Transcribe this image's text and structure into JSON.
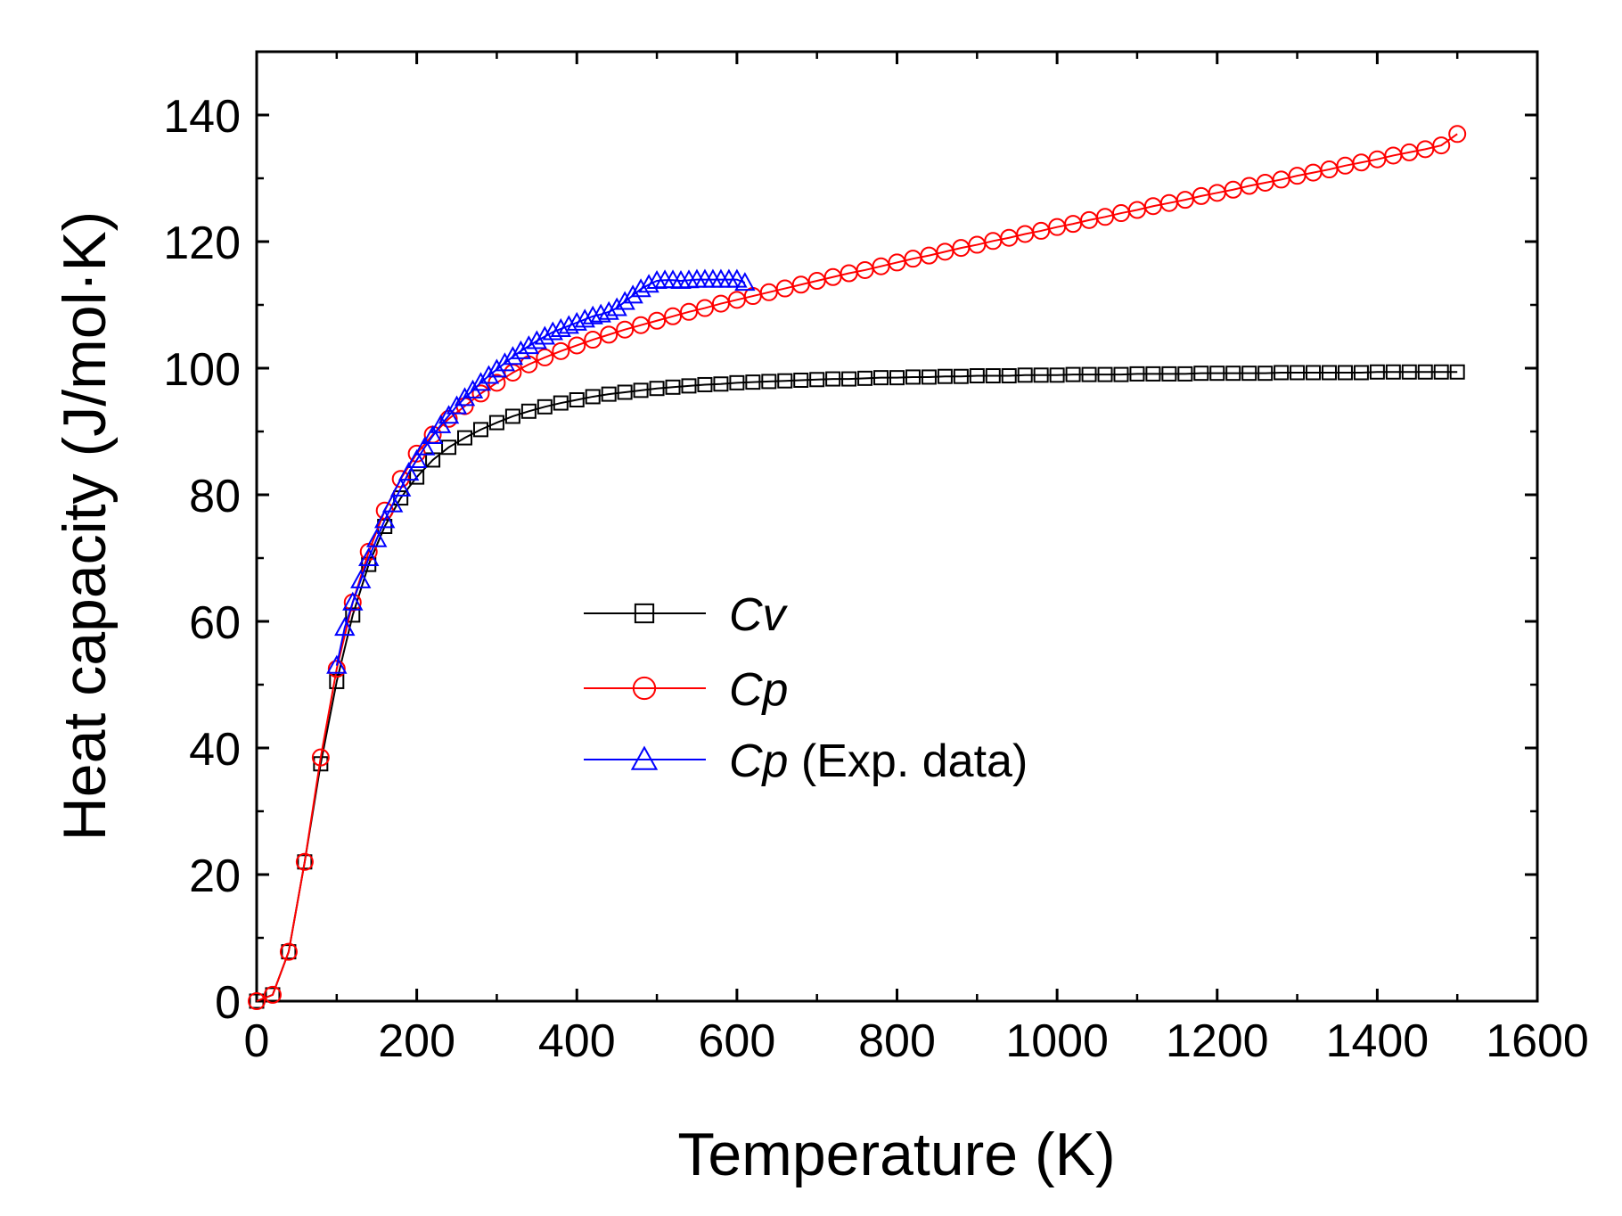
{
  "chart_data": {
    "type": "line",
    "xlabel": "Temperature (K)",
    "ylabel": "Heat capacity (J/mol·K)",
    "xlim": [
      0,
      1600
    ],
    "ylim": [
      0,
      150
    ],
    "x_ticks": [
      0,
      200,
      400,
      600,
      800,
      1000,
      1200,
      1400,
      1600
    ],
    "y_ticks": [
      0,
      20,
      40,
      60,
      80,
      100,
      120,
      140
    ],
    "legend_position": "center",
    "series": [
      {
        "name": "Cv",
        "name_main": "Cv",
        "name_suffix": "",
        "color": "#000000",
        "marker": "square",
        "x": [
          0,
          20,
          40,
          60,
          80,
          100,
          120,
          140,
          160,
          180,
          200,
          220,
          240,
          260,
          280,
          300,
          320,
          340,
          360,
          380,
          400,
          420,
          440,
          460,
          480,
          500,
          520,
          540,
          560,
          580,
          600,
          620,
          640,
          660,
          680,
          700,
          720,
          740,
          760,
          780,
          800,
          820,
          840,
          860,
          880,
          900,
          920,
          940,
          960,
          980,
          1000,
          1020,
          1040,
          1060,
          1080,
          1100,
          1120,
          1140,
          1160,
          1180,
          1200,
          1220,
          1240,
          1260,
          1280,
          1300,
          1320,
          1340,
          1360,
          1380,
          1400,
          1420,
          1440,
          1460,
          1480,
          1500
        ],
        "values": [
          0,
          1,
          7.8,
          22,
          37.5,
          50.5,
          61,
          69,
          75,
          79.5,
          82.8,
          85.5,
          87.5,
          89,
          90.3,
          91.4,
          92.4,
          93.2,
          93.9,
          94.5,
          95,
          95.5,
          95.9,
          96.2,
          96.5,
          96.8,
          97,
          97.2,
          97.4,
          97.5,
          97.7,
          97.8,
          97.9,
          98,
          98.1,
          98.2,
          98.3,
          98.3,
          98.4,
          98.5,
          98.5,
          98.6,
          98.6,
          98.7,
          98.7,
          98.8,
          98.8,
          98.8,
          98.9,
          98.9,
          98.9,
          99,
          99,
          99,
          99,
          99.1,
          99.1,
          99.1,
          99.1,
          99.2,
          99.2,
          99.2,
          99.2,
          99.2,
          99.3,
          99.3,
          99.3,
          99.3,
          99.3,
          99.3,
          99.4,
          99.4,
          99.4,
          99.4,
          99.4,
          99.4
        ]
      },
      {
        "name": "Cp",
        "name_main": "Cp",
        "name_suffix": "",
        "color": "#ff0000",
        "marker": "circle",
        "x": [
          0,
          20,
          40,
          60,
          80,
          100,
          120,
          140,
          160,
          180,
          200,
          220,
          240,
          260,
          280,
          300,
          320,
          340,
          360,
          380,
          400,
          420,
          440,
          460,
          480,
          500,
          520,
          540,
          560,
          580,
          600,
          620,
          640,
          660,
          680,
          700,
          720,
          740,
          760,
          780,
          800,
          820,
          840,
          860,
          880,
          900,
          920,
          940,
          960,
          980,
          1000,
          1020,
          1040,
          1060,
          1080,
          1100,
          1120,
          1140,
          1160,
          1180,
          1200,
          1220,
          1240,
          1260,
          1280,
          1300,
          1320,
          1340,
          1360,
          1380,
          1400,
          1420,
          1440,
          1460,
          1480,
          1500
        ],
        "values": [
          0,
          1,
          7.8,
          22,
          38.5,
          52.5,
          63,
          71,
          77.5,
          82.5,
          86.5,
          89.5,
          92,
          94,
          96,
          97.7,
          99.3,
          100.6,
          101.7,
          102.7,
          103.6,
          104.5,
          105.3,
          106.1,
          106.8,
          107.5,
          108.2,
          108.9,
          109.5,
          110.2,
          110.8,
          111.4,
          112,
          112.6,
          113.2,
          113.8,
          114.4,
          115,
          115.5,
          116.1,
          116.7,
          117.3,
          117.8,
          118.4,
          119,
          119.5,
          120.1,
          120.6,
          121.2,
          121.7,
          122.3,
          122.8,
          123.4,
          123.9,
          124.5,
          125,
          125.6,
          126.1,
          126.6,
          127.2,
          127.7,
          128.2,
          128.8,
          129.3,
          129.8,
          130.4,
          130.9,
          131.4,
          132,
          132.5,
          133,
          133.6,
          134.1,
          134.6,
          135.2,
          137
        ]
      },
      {
        "name": "Cp (Exp. data)",
        "name_main": "Cp",
        "name_suffix": " (Exp. data)",
        "color": "#0000ff",
        "marker": "triangle",
        "x": [
          100,
          110,
          120,
          130,
          140,
          150,
          160,
          170,
          180,
          190,
          200,
          210,
          220,
          230,
          240,
          250,
          260,
          270,
          280,
          290,
          300,
          310,
          320,
          330,
          340,
          350,
          360,
          370,
          380,
          390,
          400,
          410,
          420,
          430,
          440,
          450,
          460,
          470,
          480,
          490,
          500,
          510,
          520,
          530,
          540,
          550,
          560,
          570,
          580,
          590,
          600,
          610
        ],
        "values": [
          53,
          59,
          63,
          66.5,
          70,
          73,
          76,
          78.5,
          81,
          83.5,
          85.5,
          87.5,
          89.3,
          91,
          92.5,
          94,
          95.3,
          96.5,
          97.7,
          98.8,
          99.8,
          100.8,
          101.8,
          102.7,
          103.5,
          104.3,
          105,
          105.7,
          106.2,
          106.7,
          107.2,
          107.7,
          108.2,
          108.5,
          108.9,
          109.5,
          110.5,
          111.5,
          112.5,
          113.2,
          113.8,
          113.9,
          113.9,
          113.8,
          113.9,
          114,
          114,
          114,
          114,
          114,
          114,
          113.5
        ]
      }
    ]
  }
}
